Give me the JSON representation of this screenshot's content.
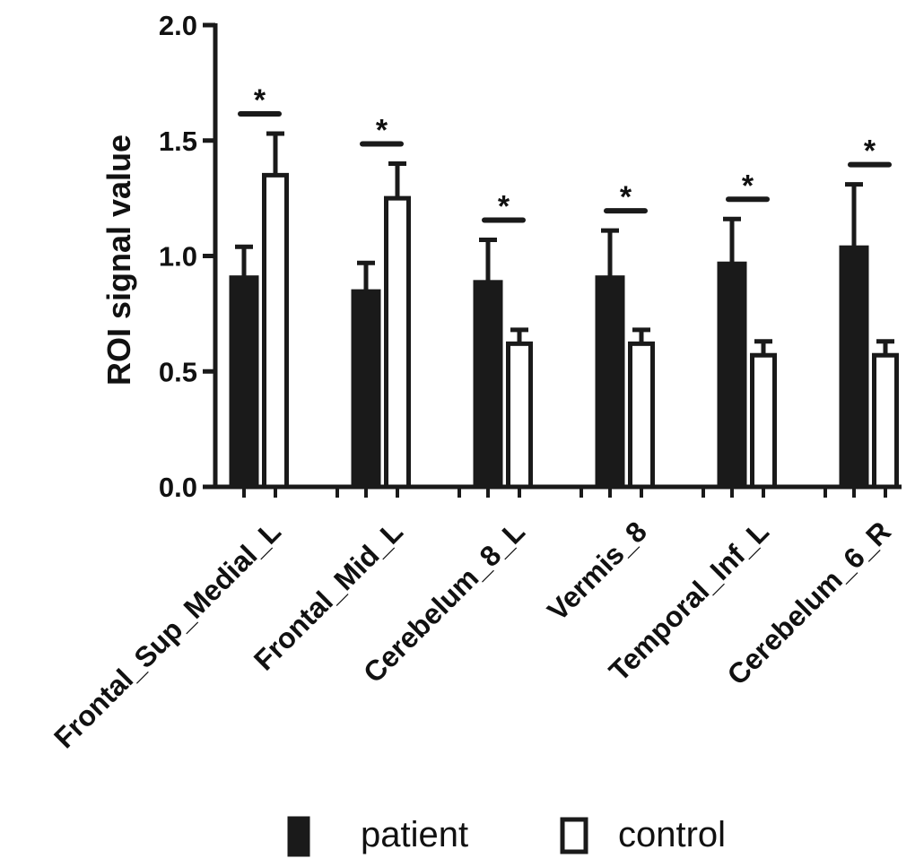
{
  "chart_data": {
    "type": "bar",
    "title": "",
    "xlabel": "",
    "ylabel": "ROI signal value",
    "ylim": [
      0,
      2.0
    ],
    "yticks": [
      0.0,
      0.5,
      1.0,
      1.5,
      2.0
    ],
    "ytick_labels": [
      "0.0",
      "0.5",
      "1.0",
      "1.5",
      "2.0"
    ],
    "categories": [
      "Frontal_Sup_Medial_L",
      "Frontal_Mid_L",
      "Cerebelum_8_L",
      "Vermis_8",
      "Temporal_Inf_L",
      "Cerebelum_6_R"
    ],
    "series": [
      {
        "name": "patient",
        "color": "#1a1a1a",
        "values": [
          0.91,
          0.85,
          0.89,
          0.91,
          0.97,
          1.04
        ],
        "errors": [
          0.13,
          0.12,
          0.18,
          0.2,
          0.19,
          0.27
        ]
      },
      {
        "name": "control",
        "color": "#ffffff",
        "values": [
          1.35,
          1.25,
          0.62,
          0.62,
          0.57,
          0.57
        ],
        "errors": [
          0.18,
          0.15,
          0.06,
          0.06,
          0.06,
          0.06
        ]
      }
    ],
    "significance": [
      "*",
      "*",
      "*",
      "*",
      "*",
      "*"
    ],
    "legend": {
      "placement": "bottom",
      "entries": [
        "patient",
        "control"
      ]
    }
  }
}
